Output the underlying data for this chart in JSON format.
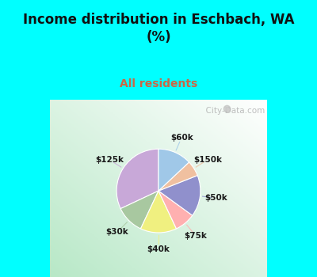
{
  "title": "Income distribution in Eschbach, WA\n(%)",
  "subtitle": "All residents",
  "title_color": "#111111",
  "subtitle_color": "#cc6644",
  "background_cyan": "#00ffff",
  "labels": [
    "$125k",
    "$30k",
    "$40k",
    "$75k",
    "$50k",
    "$150k",
    "$60k"
  ],
  "values": [
    32,
    11,
    14,
    8,
    16,
    6,
    13
  ],
  "colors": [
    "#c8a8d8",
    "#a8c8a0",
    "#f0f080",
    "#ffb0b0",
    "#9090cc",
    "#f0c0a0",
    "#a0c8e8"
  ],
  "startangle": 90,
  "watermark": "  City-Data.com"
}
